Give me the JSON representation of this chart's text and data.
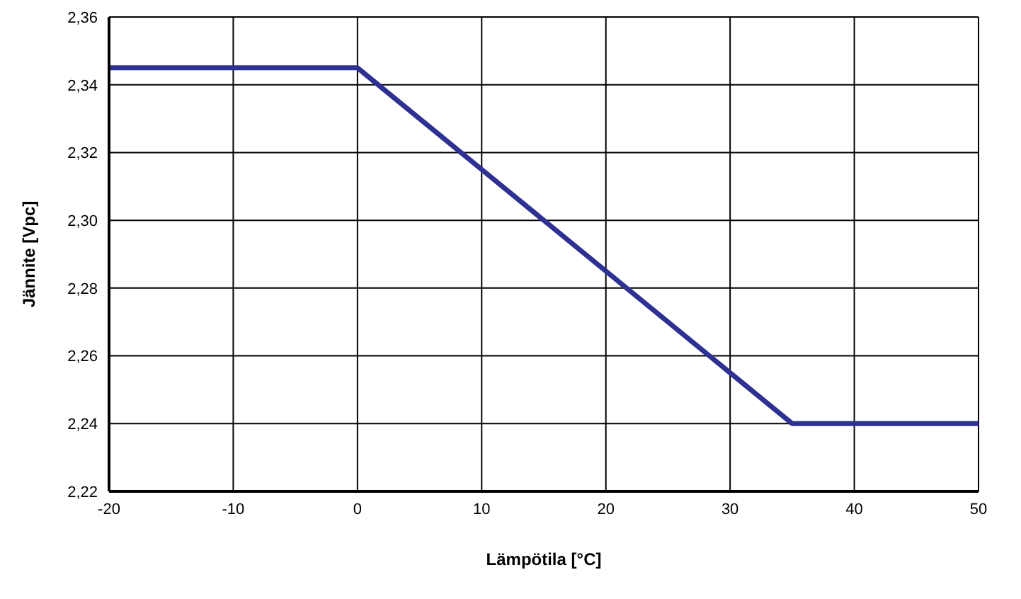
{
  "chart_data": {
    "type": "line",
    "xlabel": "Lämpötila [°C]",
    "ylabel": "Jännite [Vpc]",
    "x": [
      -20,
      0,
      35,
      50
    ],
    "series": [
      {
        "color": "#2e3192",
        "values": [
          2.345,
          2.345,
          2.24,
          2.24
        ]
      }
    ],
    "xlim": [
      -20,
      50
    ],
    "xticks": [
      -20,
      -10,
      0,
      10,
      20,
      30,
      40,
      50
    ],
    "ylim": [
      2.22,
      2.36
    ],
    "yticks": [
      {
        "value": 2.22,
        "label": "2,22"
      },
      {
        "value": 2.24,
        "label": "2,24"
      },
      {
        "value": 2.26,
        "label": "2,26"
      },
      {
        "value": 2.28,
        "label": "2,28"
      },
      {
        "value": 2.3,
        "label": "2,30"
      },
      {
        "value": 2.32,
        "label": "2,32"
      },
      {
        "value": 2.34,
        "label": "2,34"
      },
      {
        "value": 2.36,
        "label": "2,36"
      }
    ],
    "grid": true,
    "legend": false,
    "marker": "none",
    "line_style": "solid"
  }
}
